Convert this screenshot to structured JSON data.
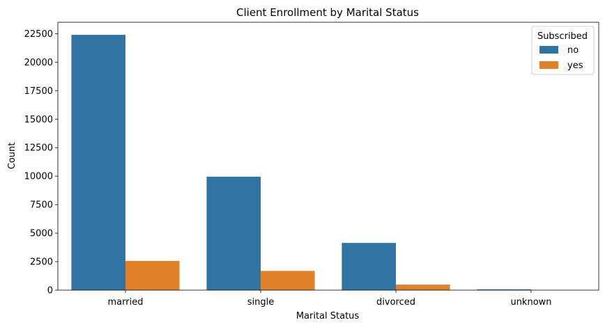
{
  "chart_data": {
    "type": "bar",
    "title": "Client Enrollment by Marital Status",
    "xlabel": "Marital Status",
    "ylabel": "Count",
    "categories": [
      "married",
      "single",
      "divorced",
      "unknown"
    ],
    "series": [
      {
        "name": "no",
        "color": "#3274a1",
        "values": [
          22396,
          9948,
          4141,
          68
        ]
      },
      {
        "name": "yes",
        "color": "#e1812c",
        "values": [
          2561,
          1687,
          483,
          0
        ]
      }
    ],
    "ylim": [
      0,
      23500
    ],
    "yticks": [
      0,
      2500,
      5000,
      7500,
      10000,
      12500,
      15000,
      17500,
      20000,
      22500
    ],
    "grid": false,
    "legend": {
      "title": "Subscribed",
      "position": "top-right"
    }
  }
}
